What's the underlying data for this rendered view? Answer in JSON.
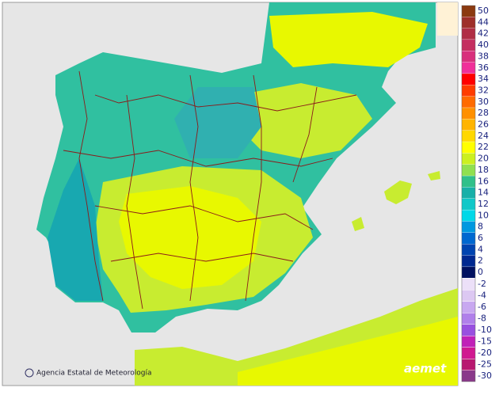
{
  "legend": [
    {
      "label": "50",
      "color": "#8b3a10"
    },
    {
      "label": "44",
      "color": "#9e2f2a"
    },
    {
      "label": "42",
      "color": "#b02e45"
    },
    {
      "label": "40",
      "color": "#c42f60"
    },
    {
      "label": "38",
      "color": "#d8307c"
    },
    {
      "label": "36",
      "color": "#f0309a"
    },
    {
      "label": "34",
      "color": "#ff0000"
    },
    {
      "label": "32",
      "color": "#ff3c00"
    },
    {
      "label": "30",
      "color": "#ff6a00"
    },
    {
      "label": "28",
      "color": "#ff9000"
    },
    {
      "label": "26",
      "color": "#ffb400"
    },
    {
      "label": "24",
      "color": "#ffd800"
    },
    {
      "label": "22",
      "color": "#ffff00"
    },
    {
      "label": "20",
      "color": "#ccf020"
    },
    {
      "label": "18",
      "color": "#90e050"
    },
    {
      "label": "16",
      "color": "#30c08a"
    },
    {
      "label": "14",
      "color": "#18b0a8"
    },
    {
      "label": "12",
      "color": "#10c8c8"
    },
    {
      "label": "10",
      "color": "#00d8e8"
    },
    {
      "label": "8",
      "color": "#0098e0"
    },
    {
      "label": "6",
      "color": "#0068d0"
    },
    {
      "label": "4",
      "color": "#0044b0"
    },
    {
      "label": "2",
      "color": "#002890"
    },
    {
      "label": "0",
      "color": "#001060"
    },
    {
      "label": "-2",
      "color": "#ece0f8"
    },
    {
      "label": "-4",
      "color": "#dcc8f2"
    },
    {
      "label": "-6",
      "color": "#c8a8f0"
    },
    {
      "label": "-8",
      "color": "#b080ea"
    },
    {
      "label": "-10",
      "color": "#9850e0"
    },
    {
      "label": "-15",
      "color": "#c020b8"
    },
    {
      "label": "-20",
      "color": "#d01890"
    },
    {
      "label": "-25",
      "color": "#b81870"
    },
    {
      "label": "-30",
      "color": "#8a3a8a"
    }
  ],
  "attribution": "Agencia Estatal de Meteorología",
  "logo": "aemet"
}
